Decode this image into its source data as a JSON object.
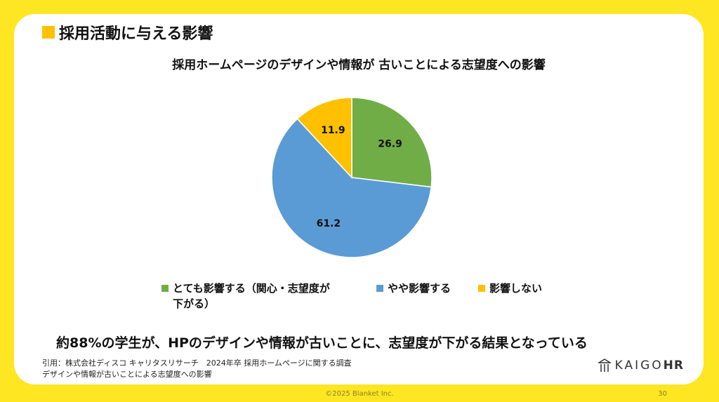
{
  "section_title": "採用活動に与える影響",
  "conclusion": "約88%の学生が、HPのデザインや情報が古いことに、志望度が下がる結果となっている",
  "source": {
    "line1": "引用：株式会社ディスコ キャリタスリサーチ　2024年卒 採用ホームページに関する調査",
    "line2": "デザインや情報が古いことによる志望度への影響"
  },
  "logo": {
    "text": "KAIGO",
    "bold": "HR",
    "icon": "pillar-logo-icon"
  },
  "footer": {
    "copyright": "©2025 Blanket Inc.",
    "page": "30"
  },
  "chart_data": {
    "type": "pie",
    "title": "採用ホームページのデザインや情報が 古いことによる志望度への影響",
    "categories": [
      "とても影響する（関心・志望度が下がる）",
      "やや影響する",
      "影響しない"
    ],
    "legend_lines": [
      [
        "とても影響する（関心・志望度が",
        "下がる）"
      ],
      [
        "やや影響する"
      ],
      [
        "影響しない"
      ]
    ],
    "values": [
      26.9,
      61.2,
      11.9
    ],
    "colors": [
      "#70ad47",
      "#5b9bd5",
      "#ffc000"
    ],
    "legend_position": "bottom"
  }
}
